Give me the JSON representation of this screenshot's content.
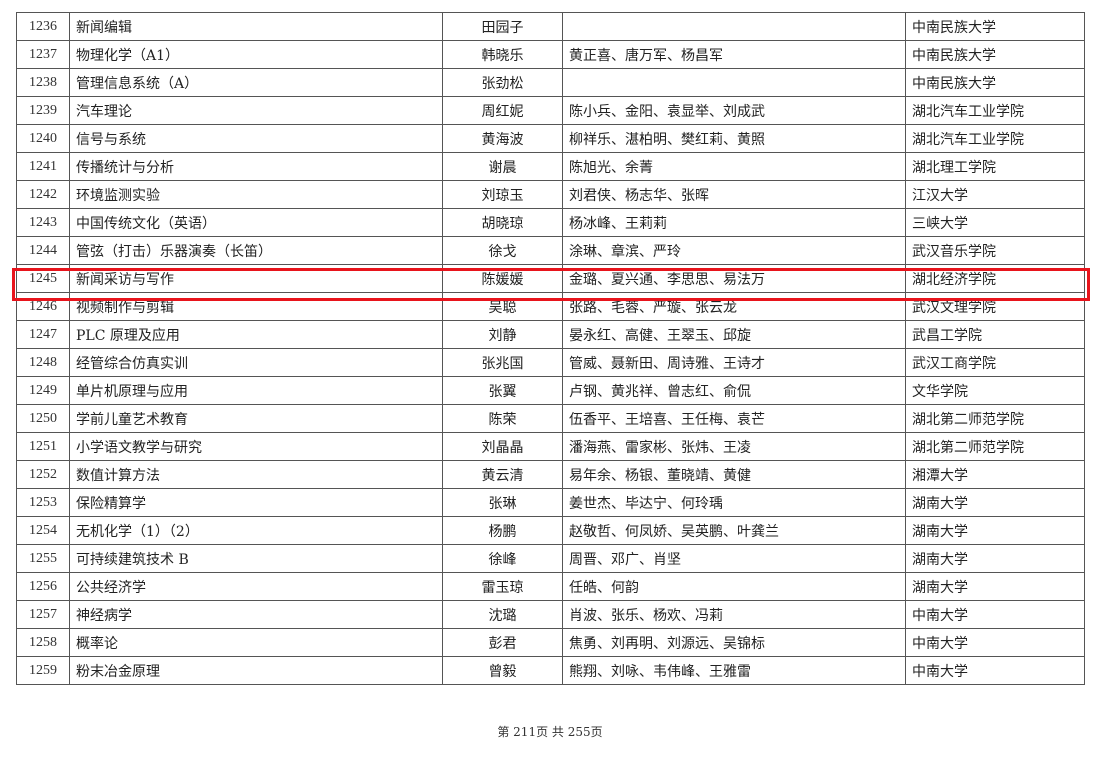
{
  "rows": [
    {
      "no": "1236",
      "course": "新闻编辑",
      "leader": "田园子",
      "members": "",
      "school": "中南民族大学"
    },
    {
      "no": "1237",
      "course": "物理化学（A1）",
      "leader": "韩晓乐",
      "members": "黄正喜、唐万军、杨昌军",
      "school": "中南民族大学"
    },
    {
      "no": "1238",
      "course": "管理信息系统（A）",
      "leader": "张劲松",
      "members": "",
      "school": "中南民族大学"
    },
    {
      "no": "1239",
      "course": "汽车理论",
      "leader": "周红妮",
      "members": "陈小兵、金阳、袁显举、刘成武",
      "school": "湖北汽车工业学院"
    },
    {
      "no": "1240",
      "course": "信号与系统",
      "leader": "黄海波",
      "members": "柳祥乐、湛柏明、樊红莉、黄照",
      "school": "湖北汽车工业学院"
    },
    {
      "no": "1241",
      "course": "传播统计与分析",
      "leader": "谢晨",
      "members": "陈旭光、余菁",
      "school": "湖北理工学院"
    },
    {
      "no": "1242",
      "course": "环境监测实验",
      "leader": "刘琼玉",
      "members": "刘君侠、杨志华、张晖",
      "school": "江汉大学"
    },
    {
      "no": "1243",
      "course": "中国传统文化（英语）",
      "leader": "胡晓琼",
      "members": "杨冰峰、王莉莉",
      "school": "三峡大学"
    },
    {
      "no": "1244",
      "course": "管弦（打击）乐器演奏（长笛）",
      "leader": "徐戈",
      "members": "涂琳、章滨、严玲",
      "school": "武汉音乐学院"
    },
    {
      "no": "1245",
      "course": "新闻采访与写作",
      "leader": "陈媛媛",
      "members": "金璐、夏兴通、李思思、易法万",
      "school": "湖北经济学院"
    },
    {
      "no": "1246",
      "course": "视频制作与剪辑",
      "leader": "吴聪",
      "members": "张路、毛蓉、严璇、张云龙",
      "school": "武汉文理学院"
    },
    {
      "no": "1247",
      "course": "PLC 原理及应用",
      "leader": "刘静",
      "members": "晏永红、高健、王翠玉、邱旋",
      "school": "武昌工学院"
    },
    {
      "no": "1248",
      "course": "经管综合仿真实训",
      "leader": "张兆国",
      "members": "管威、聂新田、周诗雅、王诗才",
      "school": "武汉工商学院"
    },
    {
      "no": "1249",
      "course": "单片机原理与应用",
      "leader": "张翼",
      "members": "卢钢、黄兆祥、曾志红、俞侃",
      "school": "文华学院"
    },
    {
      "no": "1250",
      "course": "学前儿童艺术教育",
      "leader": "陈荣",
      "members": "伍香平、王培喜、王任梅、袁芒",
      "school": "湖北第二师范学院"
    },
    {
      "no": "1251",
      "course": "小学语文教学与研究",
      "leader": "刘晶晶",
      "members": "潘海燕、雷家彬、张炜、王凌",
      "school": "湖北第二师范学院"
    },
    {
      "no": "1252",
      "course": "数值计算方法",
      "leader": "黄云清",
      "members": "易年余、杨银、董晓靖、黄健",
      "school": "湘潭大学"
    },
    {
      "no": "1253",
      "course": "保险精算学",
      "leader": "张琳",
      "members": "姜世杰、毕达宁、何玲瑀",
      "school": "湖南大学"
    },
    {
      "no": "1254",
      "course": "无机化学（1）（2）",
      "leader": "杨鹏",
      "members": "赵敬哲、何凤娇、吴英鹏、叶龚兰",
      "school": "湖南大学"
    },
    {
      "no": "1255",
      "course": "可持续建筑技术 B",
      "leader": "徐峰",
      "members": "周晋、邓广、肖坚",
      "school": "湖南大学"
    },
    {
      "no": "1256",
      "course": "公共经济学",
      "leader": "雷玉琼",
      "members": "任皓、何韵",
      "school": "湖南大学"
    },
    {
      "no": "1257",
      "course": "神经病学",
      "leader": "沈璐",
      "members": "肖波、张乐、杨欢、冯莉",
      "school": "中南大学"
    },
    {
      "no": "1258",
      "course": "概率论",
      "leader": "彭君",
      "members": "焦勇、刘再明、刘源远、吴锦标",
      "school": "中南大学"
    },
    {
      "no": "1259",
      "course": "粉末冶金原理",
      "leader": "曾毅",
      "members": "熊翔、刘咏、韦伟峰、王雅雷",
      "school": "中南大学"
    }
  ],
  "highlight_color": "#e8141c",
  "footer": "第 211页  共 255页"
}
